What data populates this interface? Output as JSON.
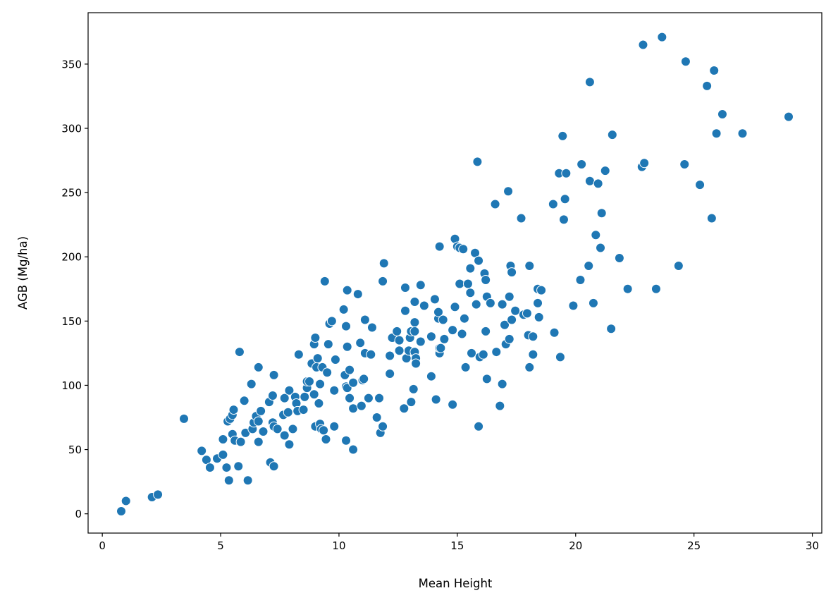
{
  "chart_data": {
    "type": "scatter",
    "title": "",
    "xlabel": "Mean Height",
    "ylabel": "AGB (Mg/ha)",
    "xlim": [
      -0.6,
      30.4
    ],
    "ylim": [
      -15,
      390
    ],
    "xticks": [
      0,
      5,
      10,
      15,
      20,
      25,
      30
    ],
    "yticks": [
      0,
      50,
      100,
      150,
      200,
      250,
      300,
      350
    ],
    "grid": false,
    "marker_color": "#1f77b4",
    "marker_edge_color": "#ffffff",
    "points": [
      [
        0.8,
        2
      ],
      [
        1.0,
        10
      ],
      [
        2.1,
        13
      ],
      [
        2.35,
        15
      ],
      [
        3.45,
        74
      ],
      [
        4.2,
        49
      ],
      [
        4.4,
        42
      ],
      [
        4.55,
        36
      ],
      [
        4.85,
        43
      ],
      [
        5.1,
        46
      ],
      [
        5.1,
        58
      ],
      [
        5.25,
        36
      ],
      [
        5.35,
        26
      ],
      [
        5.3,
        72
      ],
      [
        5.4,
        74
      ],
      [
        5.5,
        62
      ],
      [
        5.5,
        77
      ],
      [
        5.55,
        81
      ],
      [
        5.6,
        57
      ],
      [
        5.75,
        37
      ],
      [
        5.8,
        126
      ],
      [
        5.85,
        56
      ],
      [
        6.0,
        88
      ],
      [
        6.05,
        63
      ],
      [
        6.15,
        26
      ],
      [
        6.3,
        101
      ],
      [
        6.35,
        66
      ],
      [
        6.4,
        71
      ],
      [
        6.5,
        76
      ],
      [
        6.6,
        114
      ],
      [
        6.6,
        72
      ],
      [
        6.6,
        56
      ],
      [
        6.7,
        80
      ],
      [
        6.8,
        64
      ],
      [
        7.1,
        40
      ],
      [
        7.05,
        87
      ],
      [
        7.2,
        92
      ],
      [
        7.2,
        71
      ],
      [
        7.25,
        108
      ],
      [
        7.25,
        68
      ],
      [
        7.25,
        37
      ],
      [
        7.4,
        66
      ],
      [
        7.65,
        77
      ],
      [
        7.7,
        90
      ],
      [
        7.7,
        61
      ],
      [
        7.85,
        79
      ],
      [
        7.9,
        96
      ],
      [
        7.9,
        54
      ],
      [
        8.05,
        66
      ],
      [
        8.15,
        91
      ],
      [
        8.2,
        86
      ],
      [
        8.25,
        80
      ],
      [
        8.3,
        124
      ],
      [
        8.5,
        81
      ],
      [
        8.55,
        91
      ],
      [
        8.65,
        98
      ],
      [
        8.65,
        103
      ],
      [
        8.75,
        103
      ],
      [
        8.85,
        117
      ],
      [
        8.95,
        132
      ],
      [
        9.0,
        137
      ],
      [
        8.95,
        93
      ],
      [
        9.0,
        68
      ],
      [
        9.05,
        114
      ],
      [
        9.1,
        121
      ],
      [
        9.2,
        101
      ],
      [
        9.15,
        86
      ],
      [
        9.2,
        70
      ],
      [
        9.25,
        66
      ],
      [
        9.3,
        114
      ],
      [
        9.35,
        65
      ],
      [
        9.4,
        181
      ],
      [
        9.45,
        58
      ],
      [
        9.5,
        110
      ],
      [
        9.55,
        132
      ],
      [
        9.6,
        148
      ],
      [
        9.7,
        150
      ],
      [
        9.8,
        96
      ],
      [
        9.85,
        120
      ],
      [
        9.8,
        68
      ],
      [
        10.2,
        159
      ],
      [
        10.25,
        108
      ],
      [
        10.3,
        57
      ],
      [
        10.3,
        146
      ],
      [
        10.3,
        99
      ],
      [
        10.35,
        174
      ],
      [
        10.35,
        130
      ],
      [
        10.35,
        98
      ],
      [
        10.45,
        90
      ],
      [
        10.45,
        112
      ],
      [
        10.6,
        50
      ],
      [
        10.6,
        102
      ],
      [
        10.6,
        82
      ],
      [
        10.8,
        171
      ],
      [
        10.9,
        133
      ],
      [
        11.0,
        104
      ],
      [
        10.95,
        84
      ],
      [
        11.05,
        105
      ],
      [
        11.1,
        125
      ],
      [
        11.1,
        151
      ],
      [
        11.25,
        90
      ],
      [
        11.35,
        124
      ],
      [
        11.4,
        145
      ],
      [
        11.6,
        75
      ],
      [
        11.7,
        90
      ],
      [
        11.75,
        63
      ],
      [
        11.85,
        68
      ],
      [
        11.85,
        181
      ],
      [
        11.9,
        195
      ],
      [
        12.15,
        109
      ],
      [
        12.15,
        123
      ],
      [
        12.25,
        137
      ],
      [
        12.45,
        142
      ],
      [
        12.55,
        135
      ],
      [
        12.55,
        127
      ],
      [
        12.75,
        82
      ],
      [
        12.8,
        176
      ],
      [
        12.8,
        158
      ],
      [
        12.85,
        121
      ],
      [
        12.95,
        127
      ],
      [
        13.0,
        137
      ],
      [
        13.05,
        142
      ],
      [
        13.05,
        87
      ],
      [
        13.15,
        97
      ],
      [
        13.2,
        149
      ],
      [
        13.2,
        165
      ],
      [
        13.2,
        126
      ],
      [
        13.2,
        142
      ],
      [
        13.25,
        121
      ],
      [
        13.25,
        117
      ],
      [
        13.45,
        178
      ],
      [
        13.45,
        134
      ],
      [
        13.6,
        162
      ],
      [
        13.9,
        107
      ],
      [
        13.9,
        138
      ],
      [
        14.05,
        167
      ],
      [
        14.1,
        89
      ],
      [
        14.2,
        152
      ],
      [
        14.2,
        157
      ],
      [
        14.25,
        125
      ],
      [
        14.25,
        129
      ],
      [
        14.25,
        208
      ],
      [
        14.3,
        129
      ],
      [
        14.4,
        151
      ],
      [
        14.45,
        136
      ],
      [
        14.8,
        85
      ],
      [
        14.8,
        143
      ],
      [
        14.9,
        161
      ],
      [
        14.9,
        214
      ],
      [
        15.0,
        208
      ],
      [
        15.1,
        207
      ],
      [
        15.1,
        179
      ],
      [
        15.2,
        140
      ],
      [
        15.25,
        206
      ],
      [
        15.3,
        152
      ],
      [
        15.35,
        114
      ],
      [
        15.45,
        179
      ],
      [
        15.55,
        191
      ],
      [
        15.55,
        172
      ],
      [
        15.6,
        125
      ],
      [
        15.75,
        203
      ],
      [
        15.8,
        163
      ],
      [
        15.85,
        274
      ],
      [
        15.9,
        197
      ],
      [
        15.9,
        68
      ],
      [
        15.95,
        122
      ],
      [
        16.1,
        124
      ],
      [
        16.15,
        187
      ],
      [
        16.2,
        142
      ],
      [
        16.2,
        182
      ],
      [
        16.25,
        169
      ],
      [
        16.25,
        105
      ],
      [
        16.4,
        164
      ],
      [
        16.6,
        241
      ],
      [
        16.65,
        126
      ],
      [
        16.8,
        84
      ],
      [
        16.9,
        163
      ],
      [
        16.9,
        101
      ],
      [
        17.0,
        147
      ],
      [
        17.05,
        132
      ],
      [
        17.15,
        251
      ],
      [
        17.2,
        169
      ],
      [
        17.2,
        136
      ],
      [
        17.25,
        193
      ],
      [
        17.3,
        188
      ],
      [
        17.3,
        151
      ],
      [
        17.45,
        158
      ],
      [
        17.7,
        230
      ],
      [
        17.8,
        155
      ],
      [
        17.95,
        156
      ],
      [
        18.05,
        193
      ],
      [
        18.05,
        114
      ],
      [
        18.0,
        139
      ],
      [
        18.2,
        124
      ],
      [
        18.2,
        138
      ],
      [
        18.4,
        164
      ],
      [
        18.4,
        175
      ],
      [
        18.45,
        153
      ],
      [
        18.55,
        174
      ],
      [
        19.05,
        241
      ],
      [
        19.1,
        141
      ],
      [
        19.3,
        265
      ],
      [
        19.35,
        122
      ],
      [
        19.45,
        294
      ],
      [
        19.5,
        229
      ],
      [
        19.55,
        245
      ],
      [
        19.6,
        265
      ],
      [
        19.9,
        162
      ],
      [
        20.2,
        182
      ],
      [
        20.25,
        272
      ],
      [
        20.55,
        193
      ],
      [
        20.6,
        259
      ],
      [
        20.6,
        336
      ],
      [
        20.75,
        164
      ],
      [
        20.85,
        217
      ],
      [
        20.95,
        257
      ],
      [
        21.05,
        207
      ],
      [
        21.1,
        234
      ],
      [
        21.25,
        267
      ],
      [
        21.5,
        144
      ],
      [
        21.55,
        295
      ],
      [
        21.85,
        199
      ],
      [
        22.2,
        175
      ],
      [
        22.8,
        270
      ],
      [
        22.85,
        365
      ],
      [
        22.9,
        273
      ],
      [
        23.4,
        175
      ],
      [
        23.65,
        371
      ],
      [
        24.35,
        193
      ],
      [
        24.6,
        272
      ],
      [
        24.65,
        352
      ],
      [
        25.25,
        256
      ],
      [
        25.55,
        333
      ],
      [
        25.75,
        230
      ],
      [
        25.85,
        345
      ],
      [
        25.95,
        296
      ],
      [
        26.2,
        311
      ],
      [
        27.05,
        296
      ],
      [
        29.0,
        309
      ]
    ]
  }
}
